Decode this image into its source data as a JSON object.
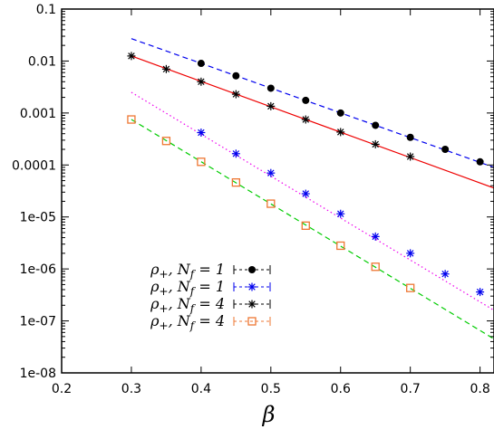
{
  "chart_data": {
    "type": "scatter",
    "title": "",
    "xlabel": "β",
    "ylabel": "",
    "xlim": [
      0.2,
      0.82
    ],
    "ylim": [
      1e-08,
      0.1
    ],
    "yscale": "log",
    "grid": false,
    "legend_position": "center-left",
    "x_ticks": [
      {
        "value": 0.2,
        "label": "0.2"
      },
      {
        "value": 0.3,
        "label": "0.3"
      },
      {
        "value": 0.4,
        "label": "0.4"
      },
      {
        "value": 0.5,
        "label": "0.5"
      },
      {
        "value": 0.6,
        "label": "0.6"
      },
      {
        "value": 0.7,
        "label": "0.7"
      },
      {
        "value": 0.8,
        "label": "0.8"
      }
    ],
    "y_ticks": [
      {
        "value": 0.1,
        "label": "0.1"
      },
      {
        "value": 0.01,
        "label": "0.01"
      },
      {
        "value": 0.001,
        "label": "0.001"
      },
      {
        "value": 0.0001,
        "label": "0.0001"
      },
      {
        "value": 1e-05,
        "label": "1e-05"
      },
      {
        "value": 1e-06,
        "label": "1e-06"
      },
      {
        "value": 1e-07,
        "label": "1e-07"
      },
      {
        "value": 1e-08,
        "label": "1e-08"
      }
    ],
    "series": [
      {
        "name": "ρ+, Nf = 1",
        "marker": "dot",
        "color": "#000000",
        "fit_color": "#0000ee",
        "fit_style": "dashed",
        "x": [
          0.4,
          0.45,
          0.5,
          0.55,
          0.6,
          0.65,
          0.7,
          0.75,
          0.8
        ],
        "y": [
          0.009,
          0.0052,
          0.003,
          0.00175,
          0.001,
          0.00058,
          0.00034,
          0.0002,
          0.000115
        ],
        "fit": {
          "x": [
            0.3,
            0.82
          ],
          "y": [
            0.027,
            9e-05
          ]
        }
      },
      {
        "name": "ρ+, Nf = 1",
        "marker": "star",
        "color": "#0000ee",
        "fit_color": "#ee00ee",
        "fit_style": "dotted",
        "x": [
          0.4,
          0.45,
          0.5,
          0.55,
          0.6,
          0.65,
          0.7,
          0.75,
          0.8
        ],
        "y": [
          0.00042,
          0.000165,
          7e-05,
          2.8e-05,
          1.15e-05,
          4.2e-06,
          2e-06,
          8e-07,
          3.6e-07
        ],
        "fit": {
          "x": [
            0.3,
            0.82
          ],
          "y": [
            0.0025,
            1.6e-07
          ]
        }
      },
      {
        "name": "ρ+, Nf = 4",
        "marker": "star",
        "color": "#000000",
        "fit_color": "#ee0000",
        "fit_style": "solid",
        "x": [
          0.3,
          0.35,
          0.4,
          0.45,
          0.5,
          0.55,
          0.6,
          0.65,
          0.7
        ],
        "y": [
          0.0125,
          0.007,
          0.004,
          0.0023,
          0.00135,
          0.00075,
          0.00043,
          0.00025,
          0.000145
        ],
        "fit": {
          "x": [
            0.3,
            0.82
          ],
          "y": [
            0.0125,
            3.6e-05
          ]
        }
      },
      {
        "name": "ρ+, Nf = 4",
        "marker": "open-square",
        "color": "#ee7733",
        "fit_color": "#00cc00",
        "fit_style": "dashed",
        "x": [
          0.3,
          0.35,
          0.4,
          0.45,
          0.5,
          0.55,
          0.6,
          0.65,
          0.7
        ],
        "y": [
          0.00075,
          0.00029,
          0.000115,
          4.6e-05,
          1.8e-05,
          6.8e-06,
          2.8e-06,
          1.1e-06,
          4.3e-07
        ],
        "fit": {
          "x": [
            0.3,
            0.82
          ],
          "y": [
            0.00075,
            4.5e-08
          ]
        }
      }
    ],
    "legend": [
      {
        "prefix": "ρ",
        "sub": "+",
        "mid": ", N",
        "sub2": "f",
        "suffix": " = 1"
      },
      {
        "prefix": "ρ",
        "sub": "+",
        "mid": ", N",
        "sub2": "f",
        "suffix": " = 1"
      },
      {
        "prefix": "ρ",
        "sub": "+",
        "mid": ", N",
        "sub2": "f",
        "suffix": " = 4"
      },
      {
        "prefix": "ρ",
        "sub": "+",
        "mid": ", N",
        "sub2": "f",
        "suffix": " = 4"
      }
    ]
  }
}
